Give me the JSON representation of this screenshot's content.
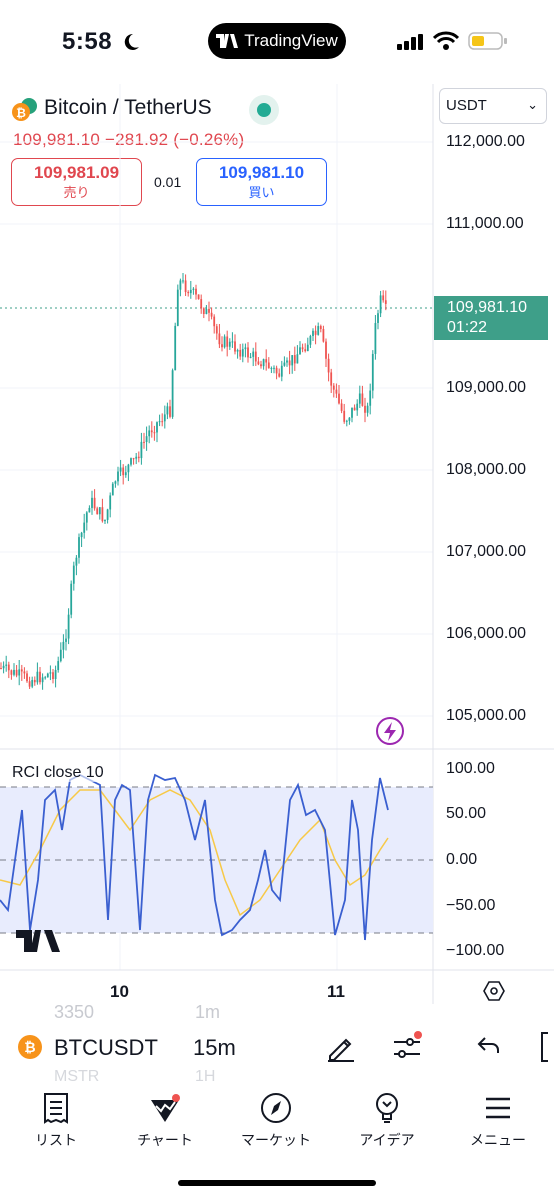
{
  "status_bar": {
    "time": "5:58",
    "app_pill": "TradingView"
  },
  "header": {
    "symbol_title": "Bitcoin / TetherUS",
    "price_line": "109,981.10 −281.92 (−0.26%)",
    "sell": {
      "price": "109,981.09",
      "label": "売り"
    },
    "spread": "0.01",
    "buy": {
      "price": "109,981.10",
      "label": "買い"
    }
  },
  "price_axis": {
    "currency": "USDT",
    "ticks": [
      "112,000.00",
      "111,000.00",
      "109,000.00",
      "108,000.00",
      "107,000.00",
      "106,000.00",
      "105,000.00"
    ],
    "last_price": "109,981.10",
    "countdown": "01:22"
  },
  "indicator": {
    "label": "RCI close 10",
    "ticks": [
      "100.00",
      "50.00",
      "0.00",
      "−50.00",
      "−100.00"
    ]
  },
  "time_axis": {
    "ticks": [
      "10",
      "11"
    ]
  },
  "toolbar": {
    "ghost_top": "3350",
    "ghost_top_tf": "1m",
    "ghost_bottom": "MSTR",
    "ghost_bottom_tf": "1H",
    "symbol": "BTCUSDT",
    "interval": "15m"
  },
  "tabs": [
    {
      "label": "リスト",
      "icon": "list-icon"
    },
    {
      "label": "チャート",
      "icon": "chart-icon"
    },
    {
      "label": "マーケット",
      "icon": "compass-icon"
    },
    {
      "label": "アイデア",
      "icon": "lightbulb-icon"
    },
    {
      "label": "メニュー",
      "icon": "menu-icon"
    }
  ],
  "colors": {
    "up": "#26a69a",
    "down": "#ef5350",
    "rci": "#2962ff",
    "signal": "#f9c74f",
    "last_price_bg": "#3e9f89"
  }
}
